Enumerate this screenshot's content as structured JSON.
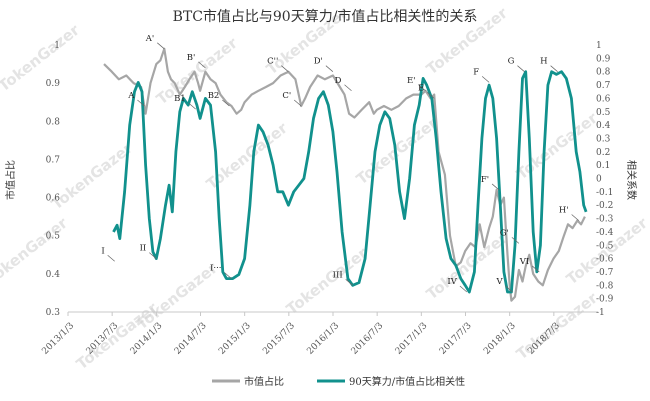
{
  "chart_data": {
    "type": "line",
    "title": "BTC市值占比与90天算力/市值占比相关性的关系",
    "y_left_label": "市值占比",
    "y_right_label": "相关系数",
    "watermark": "TokenGazer",
    "x_ticks": [
      "2013/1/3",
      "2013/7/3",
      "2014/1/3",
      "2014/7/3",
      "2015/1/3",
      "2015/7/3",
      "2016/1/3",
      "2016/7/3",
      "2017/1/3",
      "2017/7/3",
      "2018/1/3",
      "2018/7/3"
    ],
    "y_left_ticks": [
      "0.3",
      "0.4",
      "0.5",
      "0.6",
      "0.7",
      "0.8",
      "0.9",
      "1"
    ],
    "y_right_ticks": [
      "1",
      "0.9",
      "0.8",
      "0.7",
      "0.6",
      "0.5",
      "0.4",
      "0.3",
      "0.2",
      "0.1",
      "0",
      "-0.1",
      "-0.2",
      "-0.3",
      "-0.4",
      "-0.5",
      "-0.6",
      "-0.7",
      "-0.8",
      "-0.9",
      "-1"
    ],
    "ylim_left": [
      0.3,
      1.0
    ],
    "ylim_right": [
      -1,
      1
    ],
    "series": [
      {
        "name": "市值占比",
        "axis": "left",
        "color": "#a6a6a6",
        "points": [
          [
            "2013-06-01",
            0.95
          ],
          [
            "2013-07-03",
            0.93
          ],
          [
            "2013-08-01",
            0.91
          ],
          [
            "2013-09-01",
            0.92
          ],
          [
            "2013-10-01",
            0.9
          ],
          [
            "2013-11-01",
            0.89
          ],
          [
            "2013-11-20",
            0.82
          ],
          [
            "2013-12-10",
            0.9
          ],
          [
            "2014-01-03",
            0.95
          ],
          [
            "2014-01-20",
            0.96
          ],
          [
            "2014-02-05",
            0.99
          ],
          [
            "2014-02-20",
            0.93
          ],
          [
            "2014-03-05",
            0.91
          ],
          [
            "2014-03-20",
            0.9
          ],
          [
            "2014-04-10",
            0.87
          ],
          [
            "2014-05-01",
            0.89
          ],
          [
            "2014-05-20",
            0.91
          ],
          [
            "2014-06-10",
            0.93
          ],
          [
            "2014-06-25",
            0.9
          ],
          [
            "2014-07-03",
            0.88
          ],
          [
            "2014-07-25",
            0.93
          ],
          [
            "2014-08-15",
            0.91
          ],
          [
            "2014-09-05",
            0.9
          ],
          [
            "2014-09-25",
            0.87
          ],
          [
            "2014-10-20",
            0.85
          ],
          [
            "2014-11-10",
            0.84
          ],
          [
            "2014-12-01",
            0.82
          ],
          [
            "2014-12-20",
            0.83
          ],
          [
            "2015-01-03",
            0.85
          ],
          [
            "2015-02-01",
            0.87
          ],
          [
            "2015-03-01",
            0.88
          ],
          [
            "2015-04-01",
            0.89
          ],
          [
            "2015-05-01",
            0.9
          ],
          [
            "2015-06-01",
            0.92
          ],
          [
            "2015-07-03",
            0.93
          ],
          [
            "2015-08-01",
            0.91
          ],
          [
            "2015-08-25",
            0.84
          ],
          [
            "2015-09-10",
            0.86
          ],
          [
            "2015-10-01",
            0.89
          ],
          [
            "2015-11-01",
            0.92
          ],
          [
            "2015-12-01",
            0.91
          ],
          [
            "2016-01-03",
            0.92
          ],
          [
            "2016-02-01",
            0.89
          ],
          [
            "2016-02-20",
            0.87
          ],
          [
            "2016-03-10",
            0.82
          ],
          [
            "2016-04-01",
            0.81
          ],
          [
            "2016-05-01",
            0.83
          ],
          [
            "2016-06-01",
            0.85
          ],
          [
            "2016-06-20",
            0.82
          ],
          [
            "2016-07-03",
            0.83
          ],
          [
            "2016-08-01",
            0.84
          ],
          [
            "2016-09-01",
            0.83
          ],
          [
            "2016-10-01",
            0.84
          ],
          [
            "2016-11-01",
            0.86
          ],
          [
            "2016-12-01",
            0.87
          ],
          [
            "2017-01-03",
            0.87
          ],
          [
            "2017-01-20",
            0.88
          ],
          [
            "2017-02-10",
            0.86
          ],
          [
            "2017-02-25",
            0.87
          ],
          [
            "2017-03-15",
            0.72
          ],
          [
            "2017-04-10",
            0.66
          ],
          [
            "2017-05-01",
            0.5
          ],
          [
            "2017-05-25",
            0.42
          ],
          [
            "2017-06-15",
            0.43
          ],
          [
            "2017-07-03",
            0.46
          ],
          [
            "2017-07-25",
            0.48
          ],
          [
            "2017-08-15",
            0.47
          ],
          [
            "2017-09-01",
            0.53
          ],
          [
            "2017-09-20",
            0.47
          ],
          [
            "2017-10-10",
            0.52
          ],
          [
            "2017-10-25",
            0.55
          ],
          [
            "2017-11-10",
            0.62
          ],
          [
            "2017-11-25",
            0.58
          ],
          [
            "2017-12-10",
            0.6
          ],
          [
            "2017-12-25",
            0.45
          ],
          [
            "2018-01-03",
            0.37
          ],
          [
            "2018-01-10",
            0.33
          ],
          [
            "2018-01-25",
            0.34
          ],
          [
            "2018-02-10",
            0.41
          ],
          [
            "2018-02-25",
            0.38
          ],
          [
            "2018-03-10",
            0.42
          ],
          [
            "2018-03-25",
            0.45
          ],
          [
            "2018-04-10",
            0.4
          ],
          [
            "2018-05-01",
            0.38
          ],
          [
            "2018-05-20",
            0.37
          ],
          [
            "2018-06-10",
            0.41
          ],
          [
            "2018-07-03",
            0.44
          ],
          [
            "2018-07-25",
            0.46
          ],
          [
            "2018-08-15",
            0.5
          ],
          [
            "2018-09-01",
            0.53
          ],
          [
            "2018-09-20",
            0.52
          ],
          [
            "2018-10-10",
            0.54
          ],
          [
            "2018-10-25",
            0.53
          ],
          [
            "2018-11-10",
            0.55
          ]
        ]
      },
      {
        "name": "90天算力/市值占比相关性",
        "axis": "right",
        "color": "#11918d",
        "points": [
          [
            "2013-07-10",
            -0.4
          ],
          [
            "2013-07-25",
            -0.35
          ],
          [
            "2013-08-05",
            -0.45
          ],
          [
            "2013-08-25",
            -0.1
          ],
          [
            "2013-09-15",
            0.4
          ],
          [
            "2013-10-05",
            0.65
          ],
          [
            "2013-10-20",
            0.72
          ],
          [
            "2013-11-05",
            0.65
          ],
          [
            "2013-11-20",
            0.1
          ],
          [
            "2013-12-05",
            -0.3
          ],
          [
            "2013-12-20",
            -0.55
          ],
          [
            "2014-01-03",
            -0.6
          ],
          [
            "2014-01-20",
            -0.45
          ],
          [
            "2014-02-10",
            -0.2
          ],
          [
            "2014-02-25",
            -0.05
          ],
          [
            "2014-03-10",
            -0.25
          ],
          [
            "2014-03-25",
            0.2
          ],
          [
            "2014-04-10",
            0.5
          ],
          [
            "2014-04-25",
            0.6
          ],
          [
            "2014-05-15",
            0.55
          ],
          [
            "2014-06-01",
            0.65
          ],
          [
            "2014-06-20",
            0.55
          ],
          [
            "2014-07-03",
            0.45
          ],
          [
            "2014-07-25",
            0.6
          ],
          [
            "2014-08-15",
            0.55
          ],
          [
            "2014-09-05",
            0.2
          ],
          [
            "2014-09-20",
            -0.3
          ],
          [
            "2014-10-05",
            -0.7
          ],
          [
            "2014-10-20",
            -0.75
          ],
          [
            "2014-11-15",
            -0.75
          ],
          [
            "2014-12-10",
            -0.72
          ],
          [
            "2015-01-03",
            -0.6
          ],
          [
            "2015-01-25",
            -0.2
          ],
          [
            "2015-02-10",
            0.2
          ],
          [
            "2015-03-01",
            0.4
          ],
          [
            "2015-03-20",
            0.35
          ],
          [
            "2015-04-10",
            0.25
          ],
          [
            "2015-05-01",
            0.1
          ],
          [
            "2015-05-20",
            -0.1
          ],
          [
            "2015-06-10",
            -0.1
          ],
          [
            "2015-07-03",
            -0.2
          ],
          [
            "2015-07-25",
            -0.1
          ],
          [
            "2015-08-15",
            -0.05
          ],
          [
            "2015-09-05",
            0.0
          ],
          [
            "2015-09-25",
            0.2
          ],
          [
            "2015-10-15",
            0.45
          ],
          [
            "2015-11-05",
            0.6
          ],
          [
            "2015-11-25",
            0.65
          ],
          [
            "2015-12-15",
            0.55
          ],
          [
            "2016-01-03",
            0.35
          ],
          [
            "2016-01-20",
            0.05
          ],
          [
            "2016-02-10",
            -0.4
          ],
          [
            "2016-03-05",
            -0.75
          ],
          [
            "2016-03-25",
            -0.8
          ],
          [
            "2016-04-20",
            -0.78
          ],
          [
            "2016-05-15",
            -0.6
          ],
          [
            "2016-06-05",
            -0.2
          ],
          [
            "2016-06-25",
            0.2
          ],
          [
            "2016-07-15",
            0.4
          ],
          [
            "2016-08-05",
            0.5
          ],
          [
            "2016-08-25",
            0.45
          ],
          [
            "2016-09-15",
            0.25
          ],
          [
            "2016-10-05",
            -0.1
          ],
          [
            "2016-10-25",
            -0.3
          ],
          [
            "2016-11-15",
            0.0
          ],
          [
            "2016-12-05",
            0.4
          ],
          [
            "2016-12-25",
            0.55
          ],
          [
            "2017-01-10",
            0.75
          ],
          [
            "2017-01-25",
            0.7
          ],
          [
            "2017-02-15",
            0.6
          ],
          [
            "2017-03-05",
            0.3
          ],
          [
            "2017-03-25",
            -0.1
          ],
          [
            "2017-04-15",
            -0.45
          ],
          [
            "2017-05-05",
            -0.6
          ],
          [
            "2017-05-25",
            -0.65
          ],
          [
            "2017-06-15",
            -0.75
          ],
          [
            "2017-07-03",
            -0.8
          ],
          [
            "2017-07-20",
            -0.85
          ],
          [
            "2017-08-10",
            -0.7
          ],
          [
            "2017-08-25",
            -0.2
          ],
          [
            "2017-09-10",
            0.3
          ],
          [
            "2017-09-25",
            0.6
          ],
          [
            "2017-10-10",
            0.7
          ],
          [
            "2017-10-25",
            0.6
          ],
          [
            "2017-11-10",
            0.3
          ],
          [
            "2017-11-25",
            -0.2
          ],
          [
            "2017-12-10",
            -0.7
          ],
          [
            "2017-12-25",
            -0.85
          ],
          [
            "2018-01-10",
            -0.85
          ],
          [
            "2018-01-25",
            -0.5
          ],
          [
            "2018-02-10",
            0.2
          ],
          [
            "2018-02-25",
            0.75
          ],
          [
            "2018-03-10",
            0.8
          ],
          [
            "2018-03-25",
            0.3
          ],
          [
            "2018-04-10",
            -0.4
          ],
          [
            "2018-04-25",
            -0.7
          ],
          [
            "2018-05-10",
            -0.5
          ],
          [
            "2018-05-25",
            0.2
          ],
          [
            "2018-06-10",
            0.7
          ],
          [
            "2018-06-25",
            0.8
          ],
          [
            "2018-07-15",
            0.78
          ],
          [
            "2018-08-05",
            0.8
          ],
          [
            "2018-08-25",
            0.75
          ],
          [
            "2018-09-15",
            0.6
          ],
          [
            "2018-10-05",
            0.2
          ],
          [
            "2018-10-20",
            0.05
          ],
          [
            "2018-11-05",
            -0.2
          ],
          [
            "2018-11-15",
            -0.25
          ]
        ]
      }
    ],
    "annotations_left": [
      {
        "label": "A",
        "date": "2013-11-15",
        "value": 0.84
      },
      {
        "label": "A'",
        "date": "2014-02-05",
        "value": 0.99
      },
      {
        "label": "B'",
        "date": "2014-07-25",
        "value": 0.94
      },
      {
        "label": "B2",
        "date": "2014-11-01",
        "value": 0.84
      },
      {
        "label": "C''",
        "date": "2015-07-03",
        "value": 0.93
      },
      {
        "label": "C'",
        "date": "2015-08-25",
        "value": 0.84
      },
      {
        "label": "D'",
        "date": "2016-01-03",
        "value": 0.93
      },
      {
        "label": "D",
        "date": "2016-03-20",
        "value": 0.88
      },
      {
        "label": "E'",
        "date": "2017-01-20",
        "value": 0.88
      },
      {
        "label": "E",
        "date": "2017-02-25",
        "value": 0.86
      },
      {
        "label": "F'",
        "date": "2017-11-20",
        "value": 0.62
      },
      {
        "label": "G'",
        "date": "2018-02-10",
        "value": 0.48
      },
      {
        "label": "H'",
        "date": "2018-10-15",
        "value": 0.54
      }
    ],
    "annotations_right": [
      {
        "label": "B1",
        "date": "2014-06-15",
        "value": 0.52
      },
      {
        "label": "F",
        "date": "2017-10-10",
        "value": 0.72
      },
      {
        "label": "G",
        "date": "2018-03-05",
        "value": 0.8
      },
      {
        "label": "H",
        "date": "2018-07-20",
        "value": 0.8
      },
      {
        "label": "I",
        "date": "2013-07-15",
        "value": -0.62
      },
      {
        "label": "II",
        "date": "2014-01-03",
        "value": -0.6
      },
      {
        "label": "I···",
        "date": "2014-11-10",
        "value": -0.75
      },
      {
        "label": "III",
        "date": "2016-03-25",
        "value": -0.8
      },
      {
        "label": "IV",
        "date": "2017-07-10",
        "value": -0.85
      },
      {
        "label": "V",
        "date": "2018-01-15",
        "value": -0.85
      },
      {
        "label": "VI",
        "date": "2018-05-05",
        "value": -0.7
      }
    ],
    "legend": {
      "position": "bottom",
      "items": [
        {
          "label": "市值占比",
          "color": "#a6a6a6"
        },
        {
          "label": "90天算力/市值占比相关性",
          "color": "#11918d"
        }
      ]
    }
  }
}
